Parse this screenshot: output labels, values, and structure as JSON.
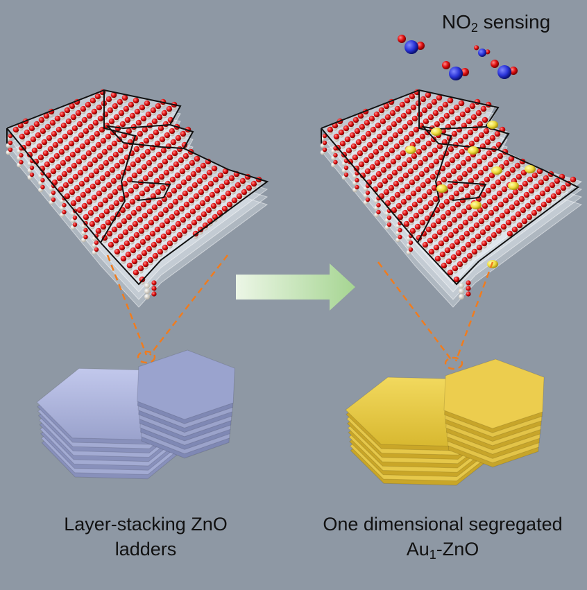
{
  "title": {
    "formula_base": "NO",
    "formula_sub": "2",
    "rest": " sensing"
  },
  "captions": {
    "left_line1": "Layer-stacking ZnO",
    "left_line2": "ladders",
    "right_line1": "One dimensional segregated",
    "right_line2_prefix": "Au",
    "right_line2_sub": "1",
    "right_line2_suffix": "-ZnO"
  },
  "colors": {
    "background": "#8e98a4",
    "oxygen": "#e01010",
    "zinc": "#e8e4da",
    "gold": "#f0e04a",
    "nitrogen": "#2a34d8",
    "left_platelets": "#a8b0d8",
    "right_platelets": "#e3c640",
    "arrow": "#b6dca8",
    "guide_lines": "#f07c1e"
  }
}
